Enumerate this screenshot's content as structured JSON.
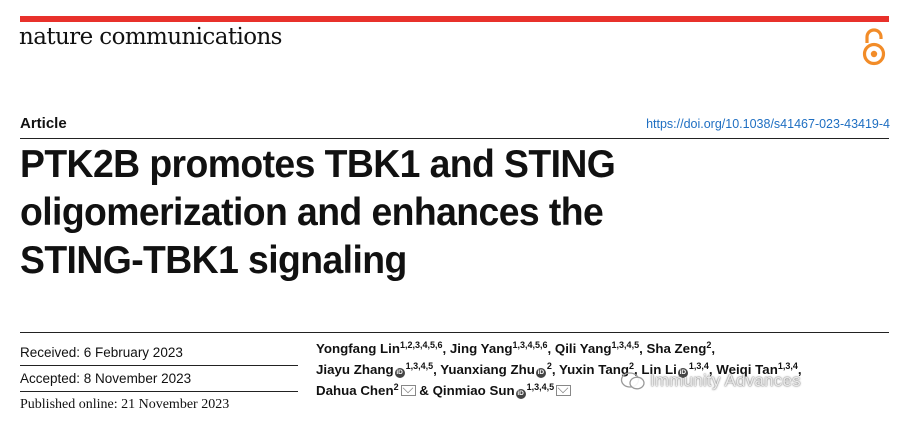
{
  "journal": "nature communications",
  "open_access_icon": "open-access-lock-icon",
  "article_type": "Article",
  "doi": "https://doi.org/10.1038/s41467-023-43419-4",
  "title_lines": [
    "PTK2B promotes TBK1 and STING",
    "oligomerization and enhances the",
    "STING-TBK1 signaling"
  ],
  "dates": {
    "received": "Received: 6 February 2023",
    "accepted": "Accepted: 8 November 2023",
    "published": "Published online: 21 November 2023"
  },
  "authors": [
    {
      "name": "Yongfang Lin",
      "aff": "1,2,3,4,5,6",
      "orcid": false,
      "sep": ", "
    },
    {
      "name": "Jing Yang",
      "aff": "1,3,4,5,6",
      "orcid": false,
      "sep": ", "
    },
    {
      "name": "Qili Yang",
      "aff": "1,3,4,5",
      "orcid": false,
      "sep": ", "
    },
    {
      "name": "Sha Zeng",
      "aff": "2",
      "orcid": false,
      "sep": ","
    },
    {
      "name": "Jiayu Zhang",
      "aff": "1,3,4,5",
      "orcid": true,
      "sep": ", "
    },
    {
      "name": "Yuanxiang Zhu",
      "aff": "2",
      "orcid": true,
      "sep": ", "
    },
    {
      "name": "Yuxin Tang",
      "aff": "2",
      "orcid": false,
      "sep": ", "
    },
    {
      "name": "Lin Li",
      "aff": "1,3,4",
      "orcid": true,
      "sep": ", "
    },
    {
      "name": "Weiqi Tan",
      "aff": "1,3,4",
      "orcid": false,
      "sep": ","
    },
    {
      "name": "Dahua Chen",
      "aff": "2",
      "orcid": false,
      "sep": " & "
    },
    {
      "name": "Qinmiao Sun",
      "aff": "1,3,4,5",
      "orcid": true,
      "sep": ""
    }
  ],
  "watermark": "Immunity Advances",
  "colors": {
    "accent_bar": "#e8312b",
    "doi_link": "#1f6fc2",
    "oa_icon": "#f28c28"
  }
}
